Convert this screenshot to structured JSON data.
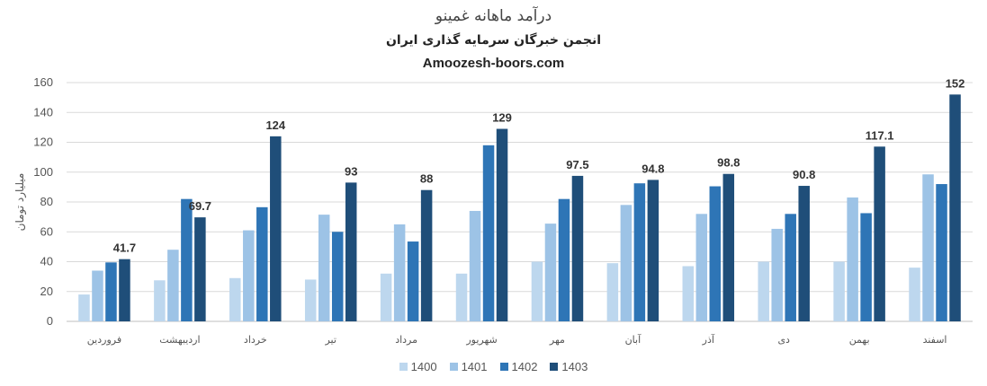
{
  "chart_data": {
    "type": "bar",
    "title": "درآمد ماهانه غمینو",
    "subtitle": "انجمن خبرگان سرمایه گذاری ایران",
    "source": "Amoozesh-boors.com",
    "ylabel": "میلیارد تومان",
    "xlabel": "",
    "ylim": [
      0,
      160
    ],
    "yticks": [
      0,
      20,
      40,
      60,
      80,
      100,
      120,
      140,
      160
    ],
    "grid": true,
    "legend_position": "bottom",
    "categories": [
      "فروردین",
      "اردیبهشت",
      "خرداد",
      "تیر",
      "مرداد",
      "شهریور",
      "مهر",
      "آبان",
      "آذر",
      "دی",
      "بهمن",
      "اسفند"
    ],
    "series": [
      {
        "name": "1400",
        "color": "#bdd7ee",
        "values": [
          18,
          27.5,
          29,
          28,
          32,
          32,
          40,
          39,
          37,
          40,
          40,
          36
        ]
      },
      {
        "name": "1401",
        "color": "#9dc3e6",
        "values": [
          34,
          48,
          61,
          71.5,
          65,
          74,
          65.5,
          78,
          72,
          62,
          83,
          98.5
        ]
      },
      {
        "name": "1402",
        "color": "#2e75b6",
        "values": [
          39.5,
          82,
          76.5,
          60,
          53.5,
          118,
          82,
          92.5,
          90.5,
          72,
          72.5,
          92
        ]
      },
      {
        "name": "1403",
        "color": "#1f4e79",
        "values": [
          41.7,
          69.7,
          124,
          93,
          88,
          129,
          97.5,
          94.8,
          98.8,
          90.8,
          117.1,
          152
        ]
      }
    ],
    "data_labels": [
      "41.7",
      "69.7",
      "124",
      "93",
      "88",
      "129",
      "97.5",
      "94.8",
      "98.8",
      "90.8",
      "117.1",
      "152"
    ]
  }
}
